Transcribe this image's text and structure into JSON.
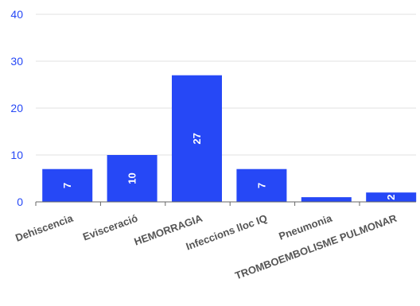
{
  "chart_data": {
    "type": "bar",
    "categories": [
      "Dehiscencia",
      "Evisceració",
      "HEMORRAGIA",
      "Infeccions  lloc IQ",
      "Pneumonia",
      "TROMBOEMBOLISME PULMONAR"
    ],
    "values": [
      7,
      10,
      27,
      7,
      1,
      2
    ],
    "data_labels": [
      "7",
      "10",
      "27",
      "7",
      "",
      "2"
    ],
    "y_ticks": [
      "0",
      "10",
      "20",
      "30",
      "40"
    ],
    "ylim": [
      0,
      40
    ],
    "grid": true,
    "title": "",
    "xlabel": "",
    "ylabel": "",
    "colors": {
      "bar": "#2648f6",
      "tick_label": "#2648f6",
      "category_label": "#555555",
      "grid": "#e0e0e0",
      "axis": "#666666"
    }
  }
}
